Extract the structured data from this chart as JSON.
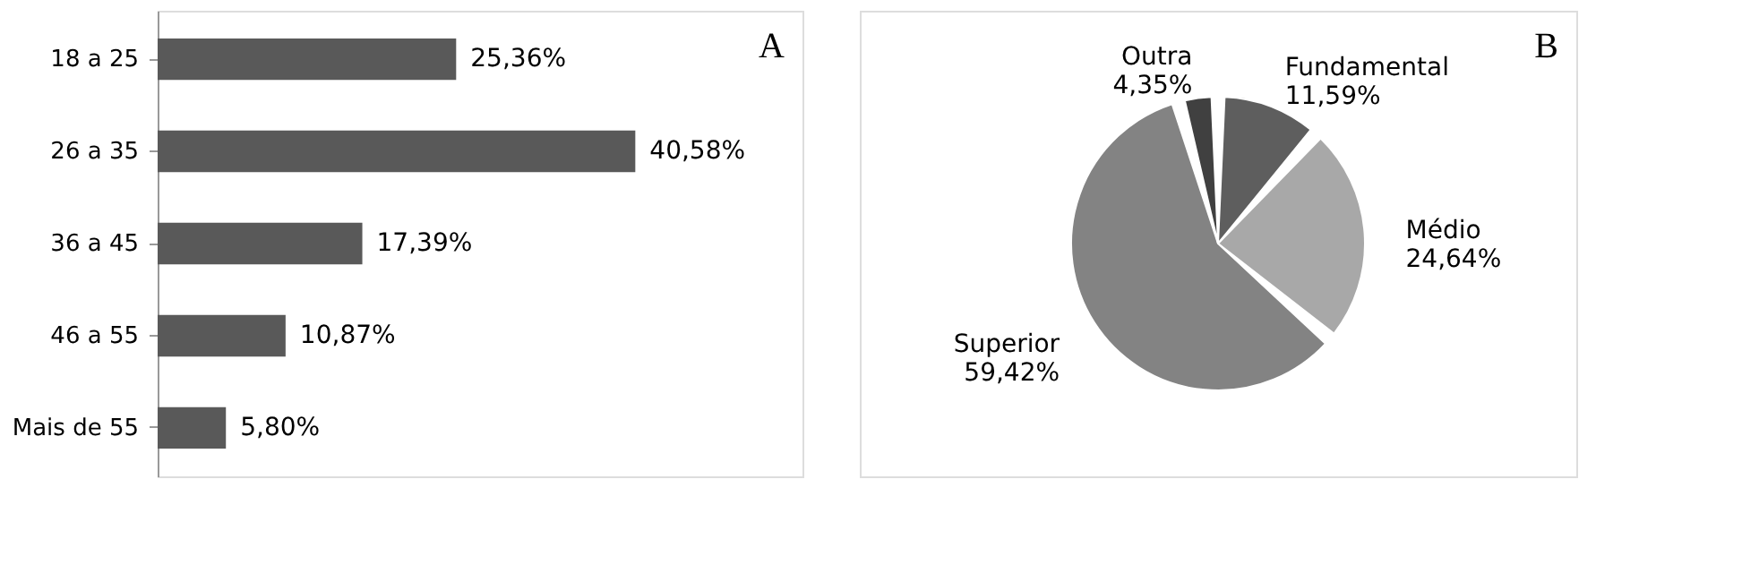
{
  "chart_data": [
    {
      "type": "bar",
      "orientation": "horizontal",
      "annotations": [
        "A"
      ],
      "legend": false,
      "categories": [
        "18 a 25",
        "26 a 35",
        "36 a 45",
        "46 a 55",
        "Mais de 55"
      ],
      "values": [
        25.36,
        40.58,
        17.39,
        10.87,
        5.8
      ],
      "value_labels": [
        "25,36%",
        "40,58%",
        "17,39%",
        "10,87%",
        "5,80%"
      ],
      "color": "#595959",
      "grid": false
    },
    {
      "type": "pie",
      "annotations": [
        "B"
      ],
      "legend": false,
      "categories": [
        "Fundamental",
        "Médio",
        "Superior",
        "Outra"
      ],
      "values": [
        11.59,
        24.64,
        59.42,
        4.35
      ],
      "value_labels": [
        "11,59%",
        "24,64%",
        "59,42%",
        "4,35%"
      ],
      "colors": [
        "#5e5e5e",
        "#a8a8a8",
        "#838383",
        "#404040"
      ]
    }
  ]
}
